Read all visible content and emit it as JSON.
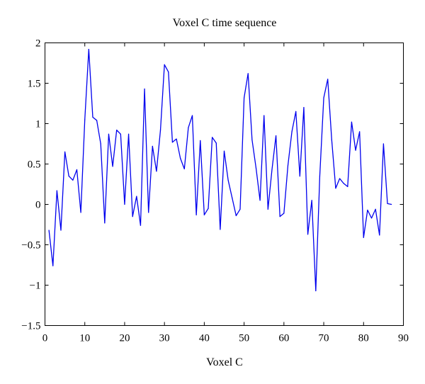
{
  "chart_data": {
    "type": "line",
    "title": "Voxel C time sequence",
    "xlabel": "Voxel C",
    "ylabel": "",
    "xlim": [
      0,
      90
    ],
    "ylim": [
      -1.5,
      2
    ],
    "xticks": [
      0,
      10,
      20,
      30,
      40,
      50,
      60,
      70,
      80,
      90
    ],
    "yticks": [
      -1.5,
      -1,
      -0.5,
      0,
      0.5,
      1,
      1.5,
      2
    ],
    "xtick_labels": [
      "0",
      "10",
      "20",
      "30",
      "40",
      "50",
      "60",
      "70",
      "80",
      "90"
    ],
    "ytick_labels": [
      "−1.5",
      "−1",
      "−0.5",
      "0",
      "0.5",
      "1",
      "1.5",
      "2"
    ],
    "grid": false,
    "legend": null,
    "series": [
      {
        "color": "#0000ee",
        "x": [
          1,
          2,
          3,
          4,
          5,
          6,
          7,
          8,
          9,
          10,
          11,
          12,
          13,
          14,
          15,
          16,
          17,
          18,
          19,
          20,
          21,
          22,
          23,
          24,
          25,
          26,
          27,
          28,
          29,
          30,
          31,
          32,
          33,
          34,
          35,
          36,
          37,
          38,
          39,
          40,
          41,
          42,
          43,
          44,
          45,
          46,
          47,
          48,
          49,
          50,
          51,
          52,
          53,
          54,
          55,
          56,
          57,
          58,
          59,
          60,
          61,
          62,
          63,
          64,
          65,
          66,
          67,
          68,
          69,
          70,
          71,
          72,
          73,
          74,
          75,
          76,
          77,
          78,
          79,
          80,
          81,
          82,
          83,
          84,
          85,
          86,
          87
        ],
        "y": [
          -0.32,
          -0.76,
          0.17,
          -0.32,
          0.65,
          0.35,
          0.3,
          0.43,
          -0.1,
          1.05,
          1.92,
          1.08,
          1.04,
          0.75,
          -0.23,
          0.87,
          0.47,
          0.92,
          0.87,
          0.0,
          0.87,
          -0.15,
          0.1,
          -0.26,
          1.43,
          -0.1,
          0.72,
          0.41,
          0.92,
          1.73,
          1.64,
          0.77,
          0.81,
          0.57,
          0.44,
          0.95,
          1.1,
          -0.13,
          0.79,
          -0.13,
          -0.05,
          0.83,
          0.76,
          -0.31,
          0.66,
          0.3,
          0.08,
          -0.14,
          -0.06,
          1.32,
          1.62,
          0.8,
          0.45,
          0.05,
          1.1,
          -0.06,
          0.43,
          0.85,
          -0.15,
          -0.11,
          0.48,
          0.9,
          1.15,
          0.35,
          1.2,
          -0.37,
          0.05,
          -1.07,
          0.35,
          1.32,
          1.55,
          0.8,
          0.2,
          0.32,
          0.26,
          0.22,
          1.02,
          0.67,
          0.9,
          -0.41,
          -0.07,
          -0.17,
          -0.06,
          -0.38,
          0.75,
          0.01,
          0.0
        ]
      }
    ]
  }
}
